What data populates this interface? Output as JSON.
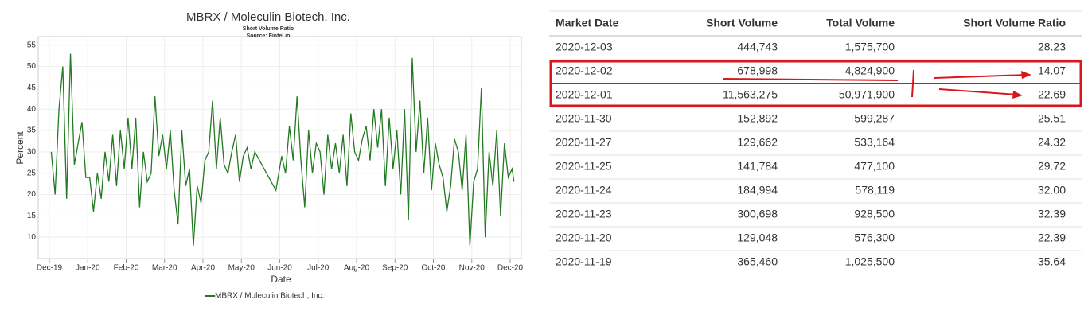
{
  "chart_data": {
    "type": "line",
    "title": "MBRX / Moleculin Biotech, Inc.",
    "subtitle": "Short Volume Ratio",
    "source": "Source: Fintel.io",
    "x_label": "Date",
    "y_label": "Percent",
    "grid": true,
    "xlim": [
      -0.29,
      12.29
    ],
    "xticks": [
      {
        "value": 0,
        "label": "Dec-19"
      },
      {
        "value": 1,
        "label": "Jan-20"
      },
      {
        "value": 2,
        "label": "Feb-20"
      },
      {
        "value": 3,
        "label": "Mar-20"
      },
      {
        "value": 4,
        "label": "Apr-20"
      },
      {
        "value": 5,
        "label": "May-20"
      },
      {
        "value": 6,
        "label": "Jun-20"
      },
      {
        "value": 7,
        "label": "Jul-20"
      },
      {
        "value": 8,
        "label": "Aug-20"
      },
      {
        "value": 9,
        "label": "Sep-20"
      },
      {
        "value": 10,
        "label": "Oct-20"
      },
      {
        "value": 11,
        "label": "Nov-20"
      },
      {
        "value": 12,
        "label": "Dec-20"
      }
    ],
    "ylim": [
      5,
      57
    ],
    "yticks": [
      10,
      15,
      20,
      25,
      30,
      35,
      40,
      45,
      50,
      55
    ],
    "x": [
      0.05,
      0.15,
      0.25,
      0.35,
      0.45,
      0.55,
      0.65,
      0.75,
      0.85,
      0.95,
      1.05,
      1.15,
      1.25,
      1.35,
      1.45,
      1.55,
      1.65,
      1.75,
      1.85,
      1.95,
      2.05,
      2.15,
      2.25,
      2.35,
      2.45,
      2.55,
      2.65,
      2.75,
      2.85,
      2.95,
      3.05,
      3.15,
      3.25,
      3.35,
      3.45,
      3.55,
      3.65,
      3.75,
      3.85,
      3.95,
      4.05,
      4.15,
      4.25,
      4.35,
      4.45,
      4.55,
      4.65,
      4.75,
      4.85,
      4.95,
      5.05,
      5.15,
      5.25,
      5.35,
      5.9,
      6.05,
      6.15,
      6.25,
      6.35,
      6.45,
      6.55,
      6.65,
      6.75,
      6.85,
      6.95,
      7.05,
      7.15,
      7.25,
      7.35,
      7.45,
      7.55,
      7.65,
      7.75,
      7.85,
      7.95,
      8.05,
      8.15,
      8.25,
      8.35,
      8.45,
      8.55,
      8.65,
      8.75,
      8.85,
      8.95,
      9.05,
      9.15,
      9.25,
      9.35,
      9.45,
      9.55,
      9.65,
      9.75,
      9.85,
      9.95,
      10.05,
      10.15,
      10.25,
      10.35,
      10.45,
      10.55,
      10.65,
      10.75,
      10.85,
      10.95,
      11.05,
      11.15,
      11.25,
      11.35,
      11.45,
      11.55,
      11.65,
      11.75,
      11.85,
      11.95,
      12.05,
      12.1
    ],
    "series": [
      {
        "name": "MBRX / Moleculin Biotech, Inc.",
        "color": "#217a21",
        "values": [
          30,
          20,
          40,
          50,
          19,
          53,
          27,
          32,
          37,
          24,
          24,
          16,
          25,
          19,
          30,
          23,
          34,
          22,
          35,
          26,
          38,
          26,
          38,
          17,
          30,
          23,
          25,
          43,
          29,
          34,
          26,
          35,
          21,
          13,
          35,
          22,
          26,
          8,
          22,
          18,
          28,
          30,
          42,
          26,
          38,
          27,
          25,
          30,
          34,
          23,
          29,
          31,
          26,
          30,
          21,
          29,
          25,
          36,
          28,
          43,
          28,
          17,
          35,
          25,
          32,
          30,
          20,
          34,
          26,
          32,
          25,
          34,
          22,
          39,
          30,
          28,
          33,
          36,
          28,
          40,
          31,
          40,
          22,
          38,
          26,
          35,
          20,
          40,
          14,
          52,
          30,
          42,
          25,
          38,
          21,
          32,
          27,
          24,
          16,
          22,
          33,
          30,
          21,
          34,
          8,
          23,
          26,
          45,
          10,
          30,
          22,
          35,
          15,
          32,
          24,
          26,
          23
        ]
      }
    ]
  },
  "table": {
    "columns": [
      "Market Date",
      "Short Volume",
      "Total Volume",
      "Short Volume Ratio"
    ],
    "rows": [
      [
        "2020-12-03",
        "444,743",
        "1,575,700",
        "28.23"
      ],
      [
        "2020-12-02",
        "678,998",
        "4,824,900",
        "14.07"
      ],
      [
        "2020-12-01",
        "11,563,275",
        "50,971,900",
        "22.69"
      ],
      [
        "2020-11-30",
        "152,892",
        "599,287",
        "25.51"
      ],
      [
        "2020-11-27",
        "129,662",
        "533,164",
        "24.32"
      ],
      [
        "2020-11-25",
        "141,784",
        "477,100",
        "29.72"
      ],
      [
        "2020-11-24",
        "184,994",
        "578,119",
        "32.00"
      ],
      [
        "2020-11-23",
        "300,698",
        "928,500",
        "32.39"
      ],
      [
        "2020-11-20",
        "129,048",
        "576,300",
        "22.39"
      ],
      [
        "2020-11-19",
        "365,460",
        "1,025,500",
        "35.64"
      ]
    ]
  }
}
